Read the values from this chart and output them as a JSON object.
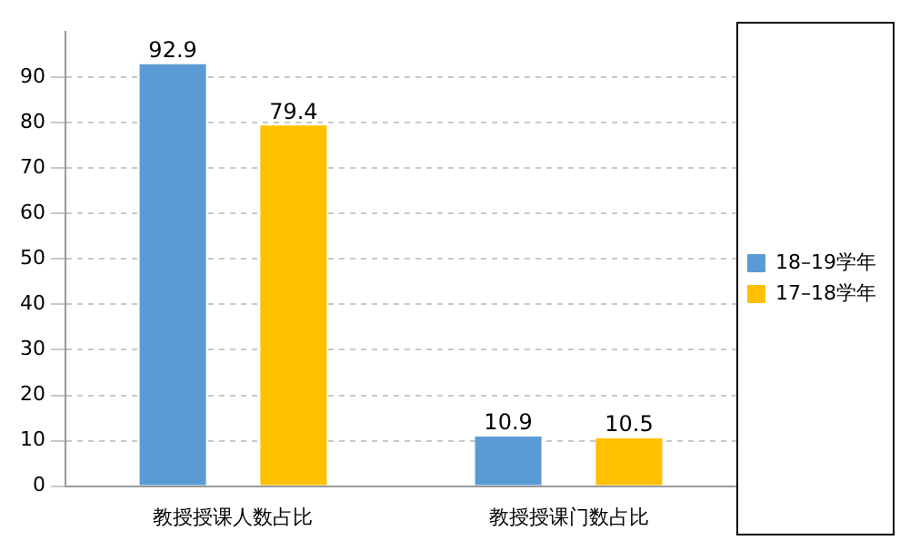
{
  "chart_data": {
    "type": "bar",
    "categories": [
      "教授授课人数占比",
      "教授授课门数占比"
    ],
    "series": [
      {
        "name": "18–19学年",
        "color": "#5b9bd5",
        "values": [
          92.9,
          10.9
        ]
      },
      {
        "name": "17–18学年",
        "color": "#ffc000",
        "values": [
          79.4,
          10.5
        ]
      }
    ],
    "ylim": [
      0,
      100
    ],
    "yticks": [
      0,
      10,
      20,
      30,
      40,
      50,
      60,
      70,
      80,
      90
    ],
    "grid": "y",
    "legend": "right",
    "data_labels": true
  }
}
